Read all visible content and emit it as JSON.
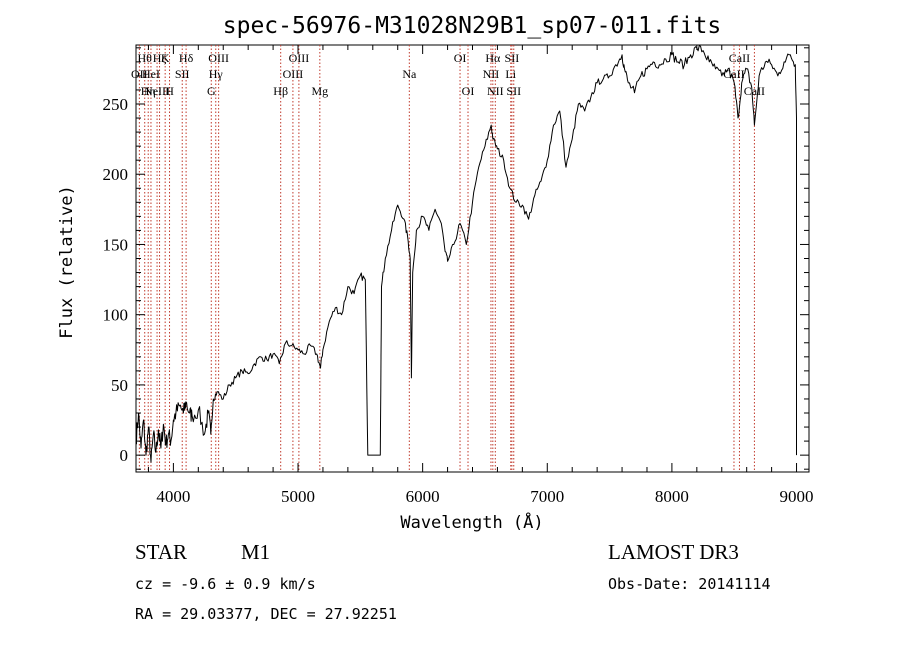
{
  "chart_data": {
    "type": "line",
    "title": "spec-56976-M31028N29B1_sp07-011.fits",
    "xlabel": "Wavelength (Å)",
    "ylabel": "Flux (relative)",
    "xlim": [
      3700,
      9100
    ],
    "ylim": [
      -12,
      292
    ],
    "xticks": [
      4000,
      5000,
      6000,
      7000,
      8000,
      9000
    ],
    "yticks": [
      0,
      50,
      100,
      150,
      200,
      250
    ],
    "grid": false,
    "series": [
      {
        "points": [
          [
            3700,
            10
          ],
          [
            3720,
            30
          ],
          [
            3740,
            5
          ],
          [
            3760,
            25
          ],
          [
            3780,
            0
          ],
          [
            3800,
            20
          ],
          [
            3820,
            -5
          ],
          [
            3840,
            15
          ],
          [
            3860,
            2
          ],
          [
            3880,
            18
          ],
          [
            3900,
            5
          ],
          [
            3920,
            22
          ],
          [
            3940,
            8
          ],
          [
            3960,
            15
          ],
          [
            3980,
            10
          ],
          [
            4000,
            25
          ],
          [
            4020,
            30
          ],
          [
            4050,
            35
          ],
          [
            4080,
            30
          ],
          [
            4100,
            38
          ],
          [
            4130,
            30
          ],
          [
            4150,
            28
          ],
          [
            4200,
            32
          ],
          [
            4250,
            15
          ],
          [
            4280,
            30
          ],
          [
            4300,
            15
          ],
          [
            4320,
            40
          ],
          [
            4350,
            45
          ],
          [
            4400,
            40
          ],
          [
            4450,
            50
          ],
          [
            4500,
            55
          ],
          [
            4550,
            60
          ],
          [
            4600,
            58
          ],
          [
            4650,
            65
          ],
          [
            4700,
            70
          ],
          [
            4750,
            68
          ],
          [
            4800,
            72
          ],
          [
            4850,
            65
          ],
          [
            4900,
            80
          ],
          [
            4950,
            78
          ],
          [
            5000,
            75
          ],
          [
            5050,
            72
          ],
          [
            5100,
            78
          ],
          [
            5150,
            72
          ],
          [
            5180,
            62
          ],
          [
            5200,
            75
          ],
          [
            5250,
            95
          ],
          [
            5300,
            105
          ],
          [
            5350,
            100
          ],
          [
            5400,
            120
          ],
          [
            5450,
            115
          ],
          [
            5500,
            128
          ],
          [
            5540,
            125
          ],
          [
            5560,
            0
          ],
          [
            5660,
            0
          ],
          [
            5670,
            120
          ],
          [
            5700,
            140
          ],
          [
            5750,
            160
          ],
          [
            5800,
            178
          ],
          [
            5850,
            168
          ],
          [
            5880,
            155
          ],
          [
            5900,
            140
          ],
          [
            5910,
            55
          ],
          [
            5920,
            130
          ],
          [
            5950,
            160
          ],
          [
            6000,
            170
          ],
          [
            6050,
            160
          ],
          [
            6100,
            175
          ],
          [
            6150,
            165
          ],
          [
            6180,
            145
          ],
          [
            6200,
            138
          ],
          [
            6250,
            150
          ],
          [
            6300,
            165
          ],
          [
            6350,
            150
          ],
          [
            6400,
            180
          ],
          [
            6450,
            205
          ],
          [
            6500,
            220
          ],
          [
            6550,
            235
          ],
          [
            6565,
            225
          ],
          [
            6600,
            218
          ],
          [
            6650,
            210
          ],
          [
            6700,
            190
          ],
          [
            6750,
            180
          ],
          [
            6800,
            178
          ],
          [
            6850,
            168
          ],
          [
            6900,
            185
          ],
          [
            6950,
            195
          ],
          [
            7000,
            210
          ],
          [
            7050,
            235
          ],
          [
            7100,
            245
          ],
          [
            7150,
            205
          ],
          [
            7200,
            225
          ],
          [
            7250,
            250
          ],
          [
            7300,
            245
          ],
          [
            7350,
            255
          ],
          [
            7400,
            265
          ],
          [
            7450,
            268
          ],
          [
            7500,
            270
          ],
          [
            7550,
            278
          ],
          [
            7600,
            285
          ],
          [
            7620,
            275
          ],
          [
            7650,
            265
          ],
          [
            7700,
            258
          ],
          [
            7750,
            270
          ],
          [
            7800,
            275
          ],
          [
            7850,
            280
          ],
          [
            7900,
            278
          ],
          [
            7950,
            282
          ],
          [
            8000,
            285
          ],
          [
            8050,
            280
          ],
          [
            8100,
            278
          ],
          [
            8150,
            285
          ],
          [
            8200,
            290
          ],
          [
            8250,
            288
          ],
          [
            8300,
            280
          ],
          [
            8350,
            275
          ],
          [
            8400,
            270
          ],
          [
            8450,
            275
          ],
          [
            8500,
            265
          ],
          [
            8530,
            240
          ],
          [
            8560,
            265
          ],
          [
            8600,
            275
          ],
          [
            8640,
            262
          ],
          [
            8662,
            235
          ],
          [
            8700,
            270
          ],
          [
            8750,
            280
          ],
          [
            8800,
            278
          ],
          [
            8850,
            270
          ],
          [
            8900,
            280
          ],
          [
            8950,
            285
          ],
          [
            8990,
            278
          ],
          [
            9000,
            240
          ],
          [
            9000,
            0
          ]
        ]
      }
    ],
    "lines": [
      {
        "wl": 3727,
        "top": "OII",
        "row": 1
      },
      {
        "wl": 3770,
        "top": "Hθ",
        "row": 0
      },
      {
        "wl": 3798,
        "top": "Hη",
        "row": 2
      },
      {
        "wl": 3820,
        "top": "HeI",
        "row": 1
      },
      {
        "wl": 3869,
        "top": "NeIII",
        "row": 2
      },
      {
        "wl": 3889,
        "top": "Hζ",
        "row": 0
      },
      {
        "wl": 3934,
        "top": "K",
        "row": 0
      },
      {
        "wl": 3969,
        "top": "H",
        "row": 2
      },
      {
        "wl": 4071,
        "top": "SII",
        "row": 1
      },
      {
        "wl": 4102,
        "top": "Hδ",
        "row": 0
      },
      {
        "wl": 4304,
        "top": "G",
        "row": 2
      },
      {
        "wl": 4340,
        "top": "Hγ",
        "row": 1
      },
      {
        "wl": 4363,
        "top": "OIII",
        "row": 0
      },
      {
        "wl": 4861,
        "top": "Hβ",
        "row": 2
      },
      {
        "wl": 4959,
        "top": "OIII",
        "row": 1
      },
      {
        "wl": 5007,
        "top": "OIII",
        "row": 0
      },
      {
        "wl": 5175,
        "top": "Mg",
        "row": 2
      },
      {
        "wl": 5893,
        "top": "Na",
        "row": 1
      },
      {
        "wl": 6300,
        "top": "OI",
        "row": 0
      },
      {
        "wl": 6364,
        "top": "OI",
        "row": 2
      },
      {
        "wl": 6548,
        "top": "NII",
        "row": 1
      },
      {
        "wl": 6563,
        "top": "Hα",
        "row": 0
      },
      {
        "wl": 6583,
        "top": "NII",
        "row": 2
      },
      {
        "wl": 6707,
        "top": "Li",
        "row": 1
      },
      {
        "wl": 6716,
        "top": "SII",
        "row": 0
      },
      {
        "wl": 6731,
        "top": "SII",
        "row": 2
      },
      {
        "wl": 8498,
        "top": "CaII",
        "row": 1
      },
      {
        "wl": 8542,
        "top": "CaII",
        "row": 0
      },
      {
        "wl": 8662,
        "top": "CaII",
        "row": 2
      }
    ]
  },
  "footer": {
    "class": "STAR",
    "subclass": "M1",
    "survey": "LAMOST DR3",
    "cz": "cz = -9.6 ± 0.9 km/s",
    "obs_date": "Obs-Date: 20141114",
    "radec": "RA =  29.03377, DEC =  27.92251"
  }
}
